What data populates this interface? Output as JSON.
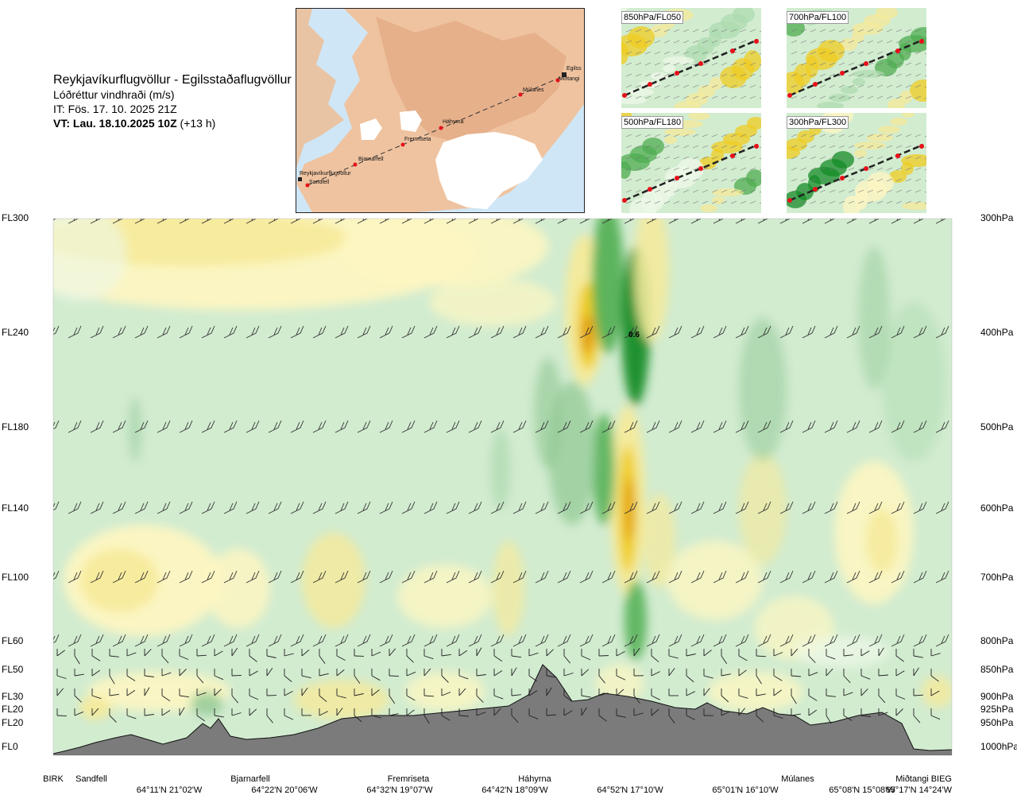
{
  "header": {
    "route": "Reykjavíkurflugvöllur - Egilsstaðaflugvöllur",
    "variable": "Lóðréttur vindhraði (m/s)",
    "issue": "IT: Fös. 17. 10. 2025 21Z",
    "valid_bold": "VT: Lau. 18.10.2025 10Z",
    "valid_rest": " (+13 h)"
  },
  "route_map": {
    "waypoints": [
      "Reykjavíkurflugvöllur",
      "Sandfell",
      "Bjarnarfell",
      "Fremriseta",
      "Háhyrna",
      "Múlanes",
      "Miðtangi",
      "Egilss"
    ]
  },
  "mini_maps": [
    {
      "label": "850hPa/FL050"
    },
    {
      "label": "700hPa/FL100"
    },
    {
      "label": "500hPa/FL180"
    },
    {
      "label": "300hPa/FL300"
    }
  ],
  "chart_data": {
    "type": "heatmap",
    "left_axis_labels": [
      "FL300",
      "FL240",
      "FL180",
      "FL140",
      "FL100",
      "FL60",
      "FL50",
      "FL30",
      "FL20",
      "FL20",
      "FL0"
    ],
    "right_axis_labels": [
      "300hPa",
      "400hPa",
      "500hPa",
      "600hPa",
      "700hPa",
      "800hPa",
      "850hPa",
      "900hPa",
      "925hPa",
      "950hPa",
      "1000hPa"
    ],
    "pressure_levels_hPa": [
      300,
      400,
      500,
      600,
      700,
      800,
      850,
      900,
      925,
      950,
      1000
    ],
    "point_labels": [
      "BIRK",
      "Sandfell",
      "Bjarnarfell",
      "Fremriseta",
      "Háhyrna",
      "Miðtangi",
      "Múlanes",
      "BIEG"
    ],
    "coordinate_labels": [
      "64°11'N 21°02'W",
      "64°22'N 20°06'W",
      "64°32'N 19°07'W",
      "64°42'N 18°09'W",
      "64°52'N 17°10'W",
      "65°01'N 16°10'W",
      "65°08'N 15°08'W",
      "65°17'N 14°24'W"
    ],
    "max_label": "0.6",
    "colors": {
      "strong_down": "#168c28",
      "down": "#4fae52",
      "weak_down": "#8fc793",
      "slight_down": "#aedbb0",
      "background": "#d2ecd0",
      "neutral": "#eef8e8",
      "slight_up": "#fdf6c2",
      "weak_up": "#f6ea9a",
      "up": "#efcc22",
      "strong_up": "#e09a18",
      "terrain": "#7b7b7b"
    }
  }
}
